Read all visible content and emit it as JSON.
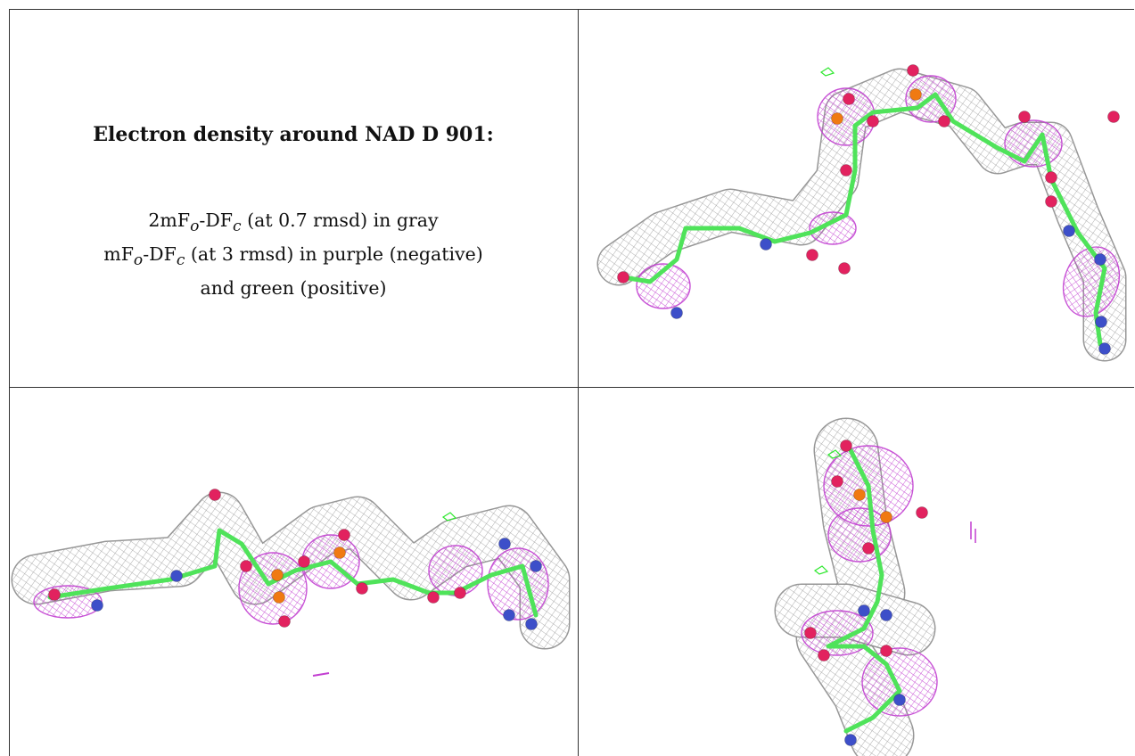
{
  "caption": {
    "title": "Electron density around NAD D 901:",
    "line1_a": "2mF",
    "line1_sub1": "o",
    "line1_b": "-DF",
    "line1_sub2": "c",
    "line1_c": " (at 0.7 rmsd) in gray",
    "line2_a": "mF",
    "line2_sub1": "o",
    "line2_b": "-DF",
    "line2_sub2": "c",
    "line2_c": " (at 3 rmsd) in purple (negative)",
    "line3": "and green (positive)"
  },
  "colors": {
    "mesh_gray": "#9a9a9a",
    "mesh_purple": "#c23fd1",
    "mesh_green": "#2ee82e",
    "bond_green": "#4fe35a",
    "atom_oxygen": "#e2225f",
    "atom_nitrogen": "#3d4fc9",
    "atom_phosphorus": "#f07a12",
    "border": "#333333"
  },
  "panels": [
    {
      "icon": "electron-density-view-1"
    },
    {
      "icon": "electron-density-view-2"
    },
    {
      "icon": "electron-density-view-3"
    }
  ]
}
